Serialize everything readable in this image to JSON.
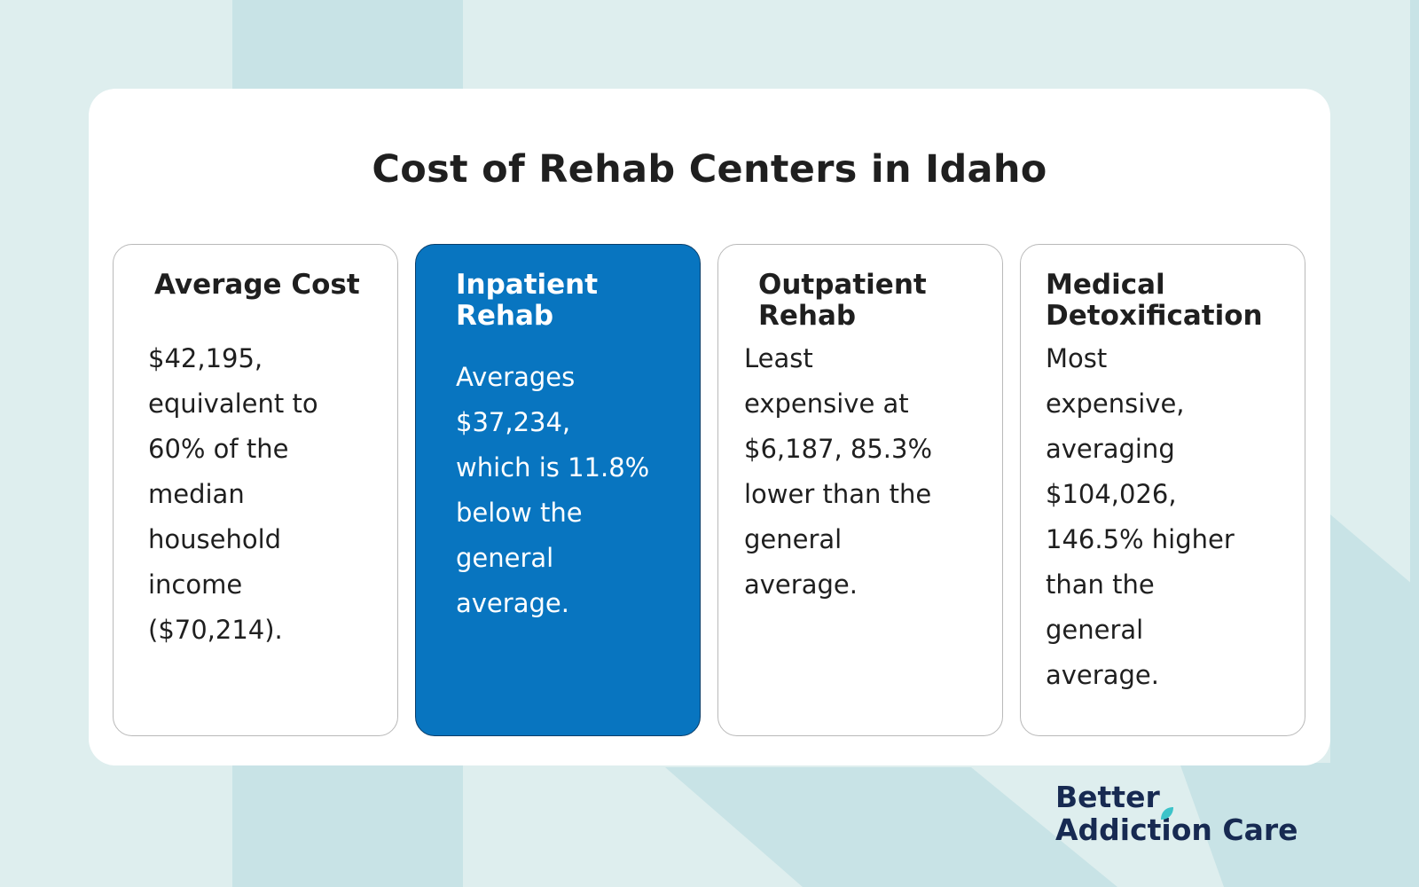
{
  "title": "Cost of Rehab Centers in Idaho",
  "cards": [
    {
      "heading": "Average Cost",
      "body": [
        "$42,195,",
        "equivalent to",
        "60% of the",
        "median",
        "household",
        "income",
        "($70,214)."
      ]
    },
    {
      "heading": [
        "Inpatient",
        "Rehab"
      ],
      "body": [
        "Averages",
        "$37,234,",
        "which is 11.8%",
        "below the",
        "general",
        "average."
      ]
    },
    {
      "heading": [
        "Outpatient",
        "Rehab"
      ],
      "body": [
        "Least",
        "expensive at",
        "$6,187, 85.3%",
        "lower than the",
        "general",
        "average."
      ]
    },
    {
      "heading": [
        "Medical",
        "Detoxification"
      ],
      "body": [
        "Most",
        "expensive,",
        "averaging",
        "$104,026,",
        "146.5% higher",
        "than the",
        "general",
        "average."
      ]
    }
  ],
  "logo": {
    "line1": "Better",
    "line2": "Addiction Care",
    "icon": "leaf-icon"
  },
  "colors": {
    "background": "#deeeee",
    "background_stripe": "#c8e3e6",
    "card": "#ffffff",
    "highlight": "#0875c0",
    "text": "#1f1f1f",
    "logo_text": "#172a52",
    "logo_leaf": "#3cc3c9"
  }
}
